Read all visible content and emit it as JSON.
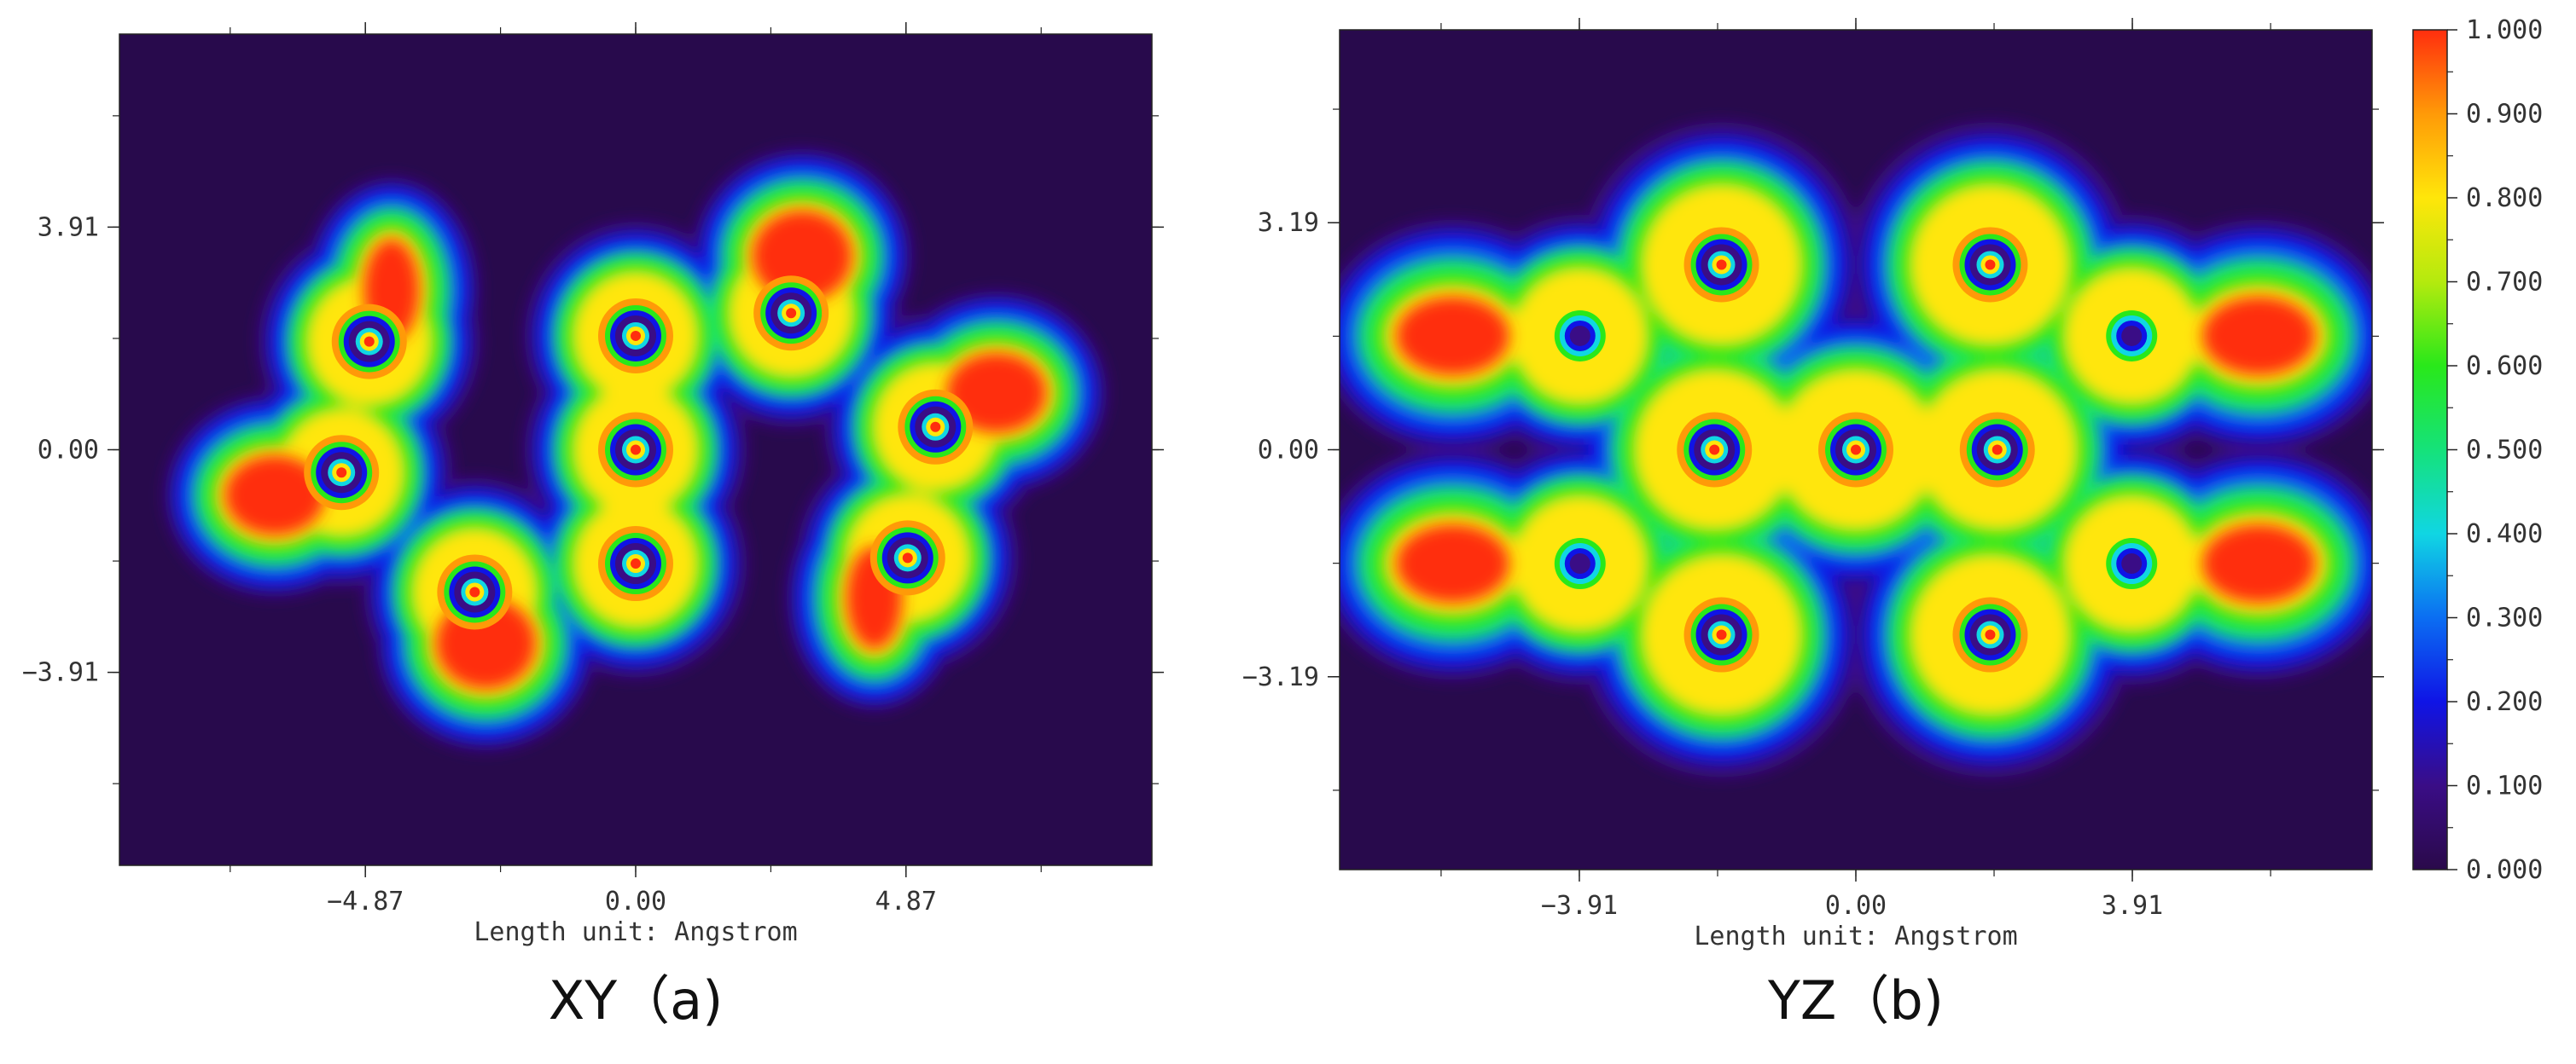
{
  "colors": {
    "background": "#280a4c",
    "scale": [
      "#2a0a4a",
      "#3a0d86",
      "#0f14e6",
      "#0b6ef2",
      "#10d6e3",
      "#15e27a",
      "#29e81a",
      "#b4ea0e",
      "#ffe60a",
      "#ff9a08",
      "#ff2e0e"
    ]
  },
  "chart_data": [
    {
      "type": "heatmap",
      "caption": "XY（a)",
      "xlabel": "Length unit: Angstrom",
      "x_ticks": [
        "−4.87",
        "0.00",
        "4.87"
      ],
      "y_ticks": [
        "3.91",
        "0.00",
        "−3.91"
      ],
      "xlim": [
        -9.3,
        9.3
      ],
      "ylim": [
        -7.3,
        7.3
      ],
      "value_range": [
        0,
        1
      ],
      "nuclei": [
        {
          "x": -4.8,
          "y": 1.9,
          "type": "heavy"
        },
        {
          "x": -5.3,
          "y": -0.4,
          "type": "heavy"
        },
        {
          "x": -2.9,
          "y": -2.5,
          "type": "heavy"
        },
        {
          "x": 0.0,
          "y": 2.0,
          "type": "heavy"
        },
        {
          "x": 0.0,
          "y": 0.0,
          "type": "heavy"
        },
        {
          "x": 0.0,
          "y": -2.0,
          "type": "heavy"
        },
        {
          "x": 2.8,
          "y": 2.4,
          "type": "heavy"
        },
        {
          "x": 5.4,
          "y": 0.4,
          "type": "heavy"
        },
        {
          "x": 4.9,
          "y": -1.9,
          "type": "heavy"
        }
      ],
      "lobes": [
        {
          "x": -4.4,
          "y": 2.8,
          "rx": 0.5,
          "ry": 0.9,
          "v": 0.97
        },
        {
          "x": -6.5,
          "y": -0.8,
          "rx": 0.9,
          "ry": 0.7,
          "v": 0.97
        },
        {
          "x": -2.7,
          "y": -3.4,
          "rx": 0.9,
          "ry": 0.8,
          "v": 0.95
        },
        {
          "x": 3.0,
          "y": 3.4,
          "rx": 0.9,
          "ry": 0.8,
          "v": 0.95
        },
        {
          "x": 6.5,
          "y": 1.0,
          "rx": 0.9,
          "ry": 0.7,
          "v": 0.97
        },
        {
          "x": 4.3,
          "y": -2.6,
          "rx": 0.5,
          "ry": 0.9,
          "v": 0.97
        }
      ]
    },
    {
      "type": "heatmap",
      "caption": "YZ（b)",
      "xlabel": "Length unit: Angstrom",
      "x_ticks": [
        "−3.91",
        "0.00",
        "3.91"
      ],
      "y_ticks": [
        "3.19",
        "0.00",
        "−3.19"
      ],
      "xlim": [
        -7.3,
        7.3
      ],
      "ylim": [
        -5.9,
        5.9
      ],
      "value_range": [
        0,
        1
      ],
      "nuclei": [
        {
          "x": -1.9,
          "y": 2.6,
          "type": "heavy"
        },
        {
          "x": 1.9,
          "y": 2.6,
          "type": "heavy"
        },
        {
          "x": -3.9,
          "y": 1.6,
          "type": "light"
        },
        {
          "x": 3.9,
          "y": 1.6,
          "type": "light"
        },
        {
          "x": -2.0,
          "y": 0.0,
          "type": "heavy"
        },
        {
          "x": 0.0,
          "y": 0.0,
          "type": "heavy"
        },
        {
          "x": 2.0,
          "y": 0.0,
          "type": "heavy"
        },
        {
          "x": -3.9,
          "y": -1.6,
          "type": "light"
        },
        {
          "x": 3.9,
          "y": -1.6,
          "type": "light"
        },
        {
          "x": -1.9,
          "y": -2.6,
          "type": "heavy"
        },
        {
          "x": 1.9,
          "y": -2.6,
          "type": "heavy"
        }
      ],
      "lobes": [
        {
          "x": -5.7,
          "y": 1.6,
          "rx": 0.8,
          "ry": 0.55,
          "v": 1.0
        },
        {
          "x": 5.7,
          "y": 1.6,
          "rx": 0.8,
          "ry": 0.55,
          "v": 1.0
        },
        {
          "x": -5.7,
          "y": -1.6,
          "rx": 0.8,
          "ry": 0.55,
          "v": 1.0
        },
        {
          "x": 5.7,
          "y": -1.6,
          "rx": 0.8,
          "ry": 0.55,
          "v": 1.0
        }
      ],
      "colorbar": {
        "labels": [
          "1.000",
          "0.900",
          "0.800",
          "0.700",
          "0.600",
          "0.500",
          "0.400",
          "0.300",
          "0.200",
          "0.100",
          "0.000"
        ],
        "range": [
          0,
          1
        ]
      }
    }
  ]
}
